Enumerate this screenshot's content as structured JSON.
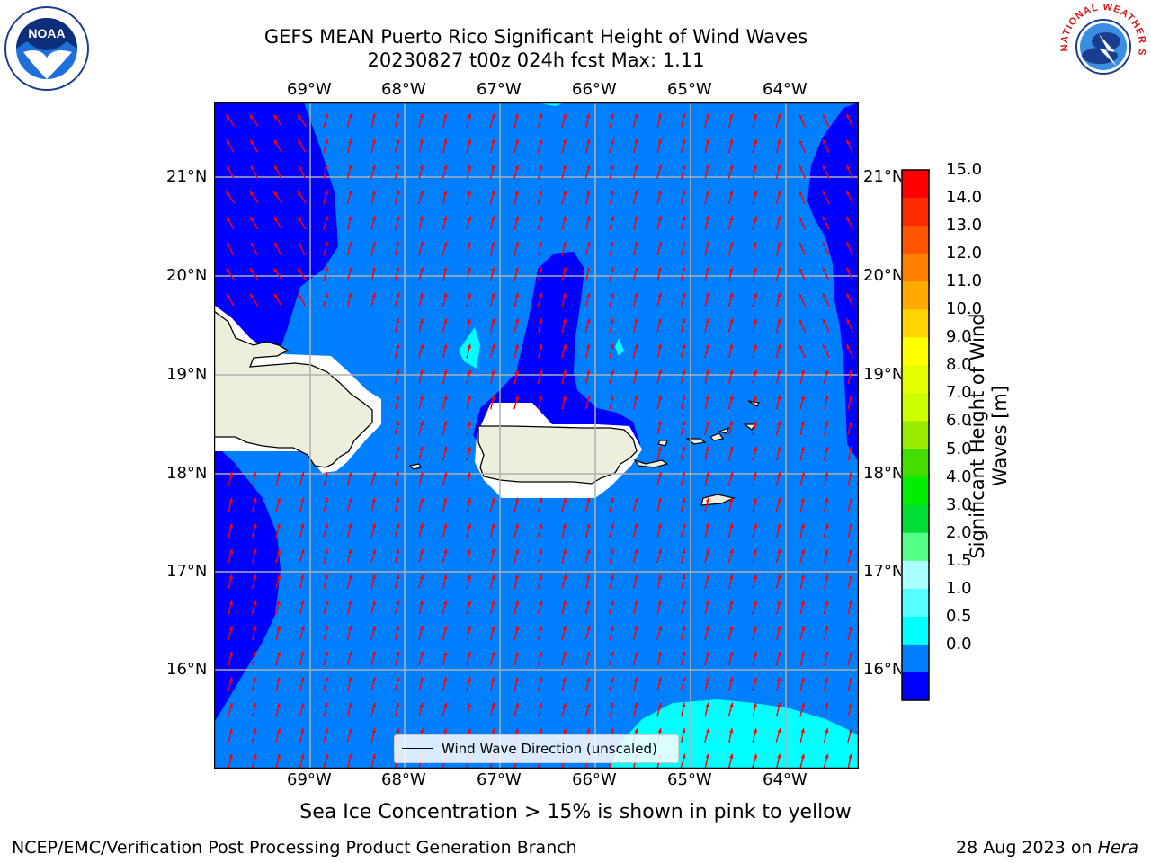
{
  "header": {
    "title_line1": "GEFS MEAN Puerto Rico Significant Height of Wind Waves",
    "title_line2": "20230827 t00z 024h fcst   Max: 1.11"
  },
  "logos": {
    "left": {
      "icon": "noaa-logo",
      "text": "NOAA"
    },
    "right": {
      "icon": "nws-logo",
      "text": "NATIONAL WEATHER SERVICE"
    }
  },
  "map": {
    "lon_ticks": [
      "69°W",
      "68°W",
      "67°W",
      "66°W",
      "65°W",
      "64°W"
    ],
    "lat_ticks": [
      "21°N",
      "20°N",
      "19°N",
      "18°N",
      "17°N",
      "16°N"
    ],
    "legend_label": "Wind Wave Direction (unscaled)",
    "colors": {
      "band_0_0_5": "#0000ff",
      "band_0_5_1_0": "#0080ff",
      "band_1_0_1_5": "#00ffff",
      "land": "#eeeedd",
      "arrow": "#ff0000",
      "grid": "#b0b0b0"
    }
  },
  "colorbar": {
    "ticks": [
      "15.0",
      "14.0",
      "13.0",
      "12.0",
      "11.0",
      "10.0",
      "9.0",
      "8.0",
      "7.0",
      "6.0",
      "5.0",
      "4.0",
      "3.0",
      "2.0",
      "1.5",
      "1.0",
      "0.5",
      "0.0"
    ],
    "colors": [
      "#ff0000",
      "#ff2a00",
      "#ff5500",
      "#ff8000",
      "#ffaa00",
      "#ffd400",
      "#ffff00",
      "#e6ff00",
      "#ccff00",
      "#99ee00",
      "#44dd00",
      "#00ee00",
      "#00dd33",
      "#55ff88",
      "#aaffff",
      "#55ffff",
      "#00ffff",
      "#0080ff",
      "#0000ff"
    ],
    "label": "Significant Height of Wind Waves [m]"
  },
  "subtitle": "Sea Ice Concentration > 15% is shown in pink to yellow",
  "footer": {
    "left": "NCEP/EMC/Verification Post Processing Product Generation Branch",
    "date": "28 Aug 2023 on ",
    "machine": "Hera"
  }
}
